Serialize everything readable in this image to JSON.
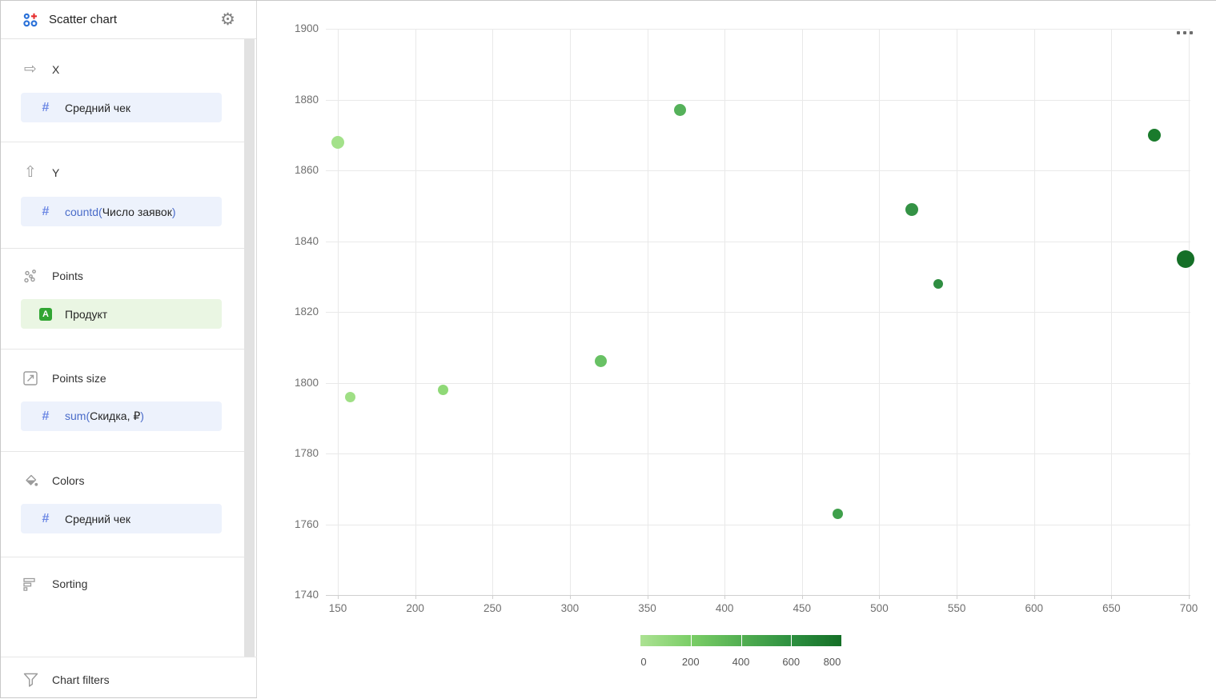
{
  "window": {
    "title": "Scatter chart"
  },
  "theme": {
    "chip_blue_bg": "#edf2fc",
    "chip_green_bg": "#eaf6e3",
    "field_function_color": "#4a6cc9",
    "hash_icon_color": "#6b87e4",
    "a_badge_color": "#31a533",
    "app_icon_blue": "#2970d8",
    "app_icon_red": "#e62e2e"
  },
  "sidebar": {
    "x": {
      "label": "X",
      "field": {
        "fn_open": "",
        "name": "Средний чек",
        "fn_close": ""
      }
    },
    "y": {
      "label": "Y",
      "field": {
        "fn_open": "countd(",
        "name": "Число заявок",
        "fn_close": ")"
      }
    },
    "points": {
      "label": "Points",
      "field": {
        "name": "Продукт"
      }
    },
    "points_size": {
      "label": "Points size",
      "field": {
        "fn_open": "sum(",
        "name": "Скидка, ₽",
        "fn_close": ")"
      }
    },
    "colors": {
      "label": "Colors",
      "field": {
        "fn_open": "",
        "name": "Средний чек",
        "fn_close": ""
      }
    },
    "sorting": {
      "label": "Sorting"
    },
    "chart_filters": {
      "label": "Chart filters"
    }
  },
  "chart_data": {
    "type": "scatter",
    "x_field": "Средний чек",
    "y_field": "countd(Число заявок)",
    "size_field": "sum(Скидка, ₽)",
    "color_field": "Средний чек",
    "x_ticks": [
      150,
      200,
      250,
      300,
      350,
      400,
      450,
      500,
      550,
      600,
      650,
      700
    ],
    "y_ticks": [
      1900,
      1880,
      1860,
      1840,
      1820,
      1800,
      1780,
      1760,
      1740
    ],
    "xlim": [
      150,
      700
    ],
    "ylim": [
      1740,
      1900
    ],
    "grid": true,
    "points": [
      {
        "x": 150,
        "y": 1868,
        "r": 8,
        "color": "#a3e18a"
      },
      {
        "x": 158,
        "y": 1796,
        "r": 6.5,
        "color": "#9fdf85"
      },
      {
        "x": 218,
        "y": 1798,
        "r": 6.5,
        "color": "#8fd977"
      },
      {
        "x": 320,
        "y": 1806,
        "r": 7.5,
        "color": "#68c164"
      },
      {
        "x": 371,
        "y": 1877,
        "r": 7.5,
        "color": "#55b15a"
      },
      {
        "x": 473,
        "y": 1763,
        "r": 6.5,
        "color": "#3fa04b"
      },
      {
        "x": 521,
        "y": 1849,
        "r": 8,
        "color": "#349245"
      },
      {
        "x": 538,
        "y": 1828,
        "r": 6,
        "color": "#2f8e41"
      },
      {
        "x": 678,
        "y": 1870,
        "r": 8,
        "color": "#1a7b2c"
      },
      {
        "x": 698,
        "y": 1835,
        "r": 11,
        "color": "#156f27"
      }
    ],
    "legend": {
      "stops": [
        0,
        200,
        400,
        600,
        800
      ],
      "gradient": [
        "#ace293",
        "#7bce67",
        "#53af52",
        "#2d9040",
        "#156f27"
      ],
      "position": "bottom-center"
    }
  }
}
